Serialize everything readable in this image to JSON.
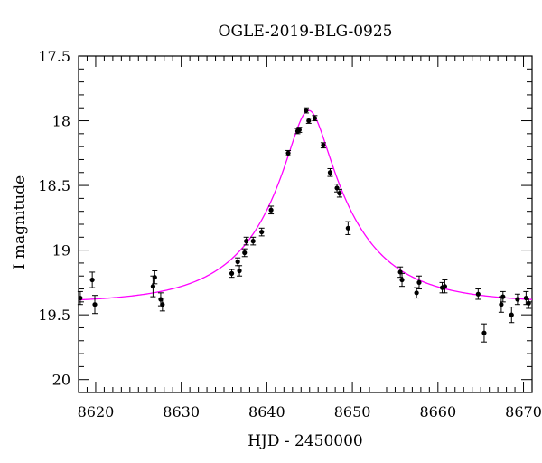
{
  "chart_data": {
    "type": "scatter",
    "title": "OGLE-2019-BLG-0925",
    "xlabel": "HJD - 2450000",
    "ylabel": "I magnitude",
    "xlim": [
      8618,
      8671
    ],
    "ylim": [
      17.5,
      20.1
    ],
    "y_inverted": true,
    "x_ticks": [
      8620,
      8630,
      8640,
      8650,
      8660,
      8670
    ],
    "y_ticks": [
      "17.5",
      "18",
      "18.5",
      "19",
      "19.5",
      "20"
    ],
    "model_color": "#ff00ff",
    "model": {
      "name": "",
      "t0": 8644.9,
      "peak_mag": 17.92,
      "baseline_mag": 19.41,
      "u0": 0.214,
      "tE": 10.4,
      "x_range": [
        8618,
        8671
      ]
    },
    "series": [
      {
        "name": "",
        "points": [
          {
            "x": 8618.2,
            "y": 19.37,
            "err": 0.05
          },
          {
            "x": 8619.6,
            "y": 19.23,
            "err": 0.06
          },
          {
            "x": 8619.9,
            "y": 19.42,
            "err": 0.07
          },
          {
            "x": 8626.7,
            "y": 19.28,
            "err": 0.08
          },
          {
            "x": 8626.9,
            "y": 19.21,
            "err": 0.05
          },
          {
            "x": 8627.6,
            "y": 19.38,
            "err": 0.05
          },
          {
            "x": 8627.8,
            "y": 19.42,
            "err": 0.05
          },
          {
            "x": 8635.9,
            "y": 19.18,
            "err": 0.03
          },
          {
            "x": 8636.6,
            "y": 19.09,
            "err": 0.03
          },
          {
            "x": 8636.8,
            "y": 19.16,
            "err": 0.04
          },
          {
            "x": 8637.4,
            "y": 19.02,
            "err": 0.03
          },
          {
            "x": 8637.6,
            "y": 18.93,
            "err": 0.03
          },
          {
            "x": 8638.4,
            "y": 18.93,
            "err": 0.03
          },
          {
            "x": 8639.4,
            "y": 18.86,
            "err": 0.03
          },
          {
            "x": 8640.5,
            "y": 18.69,
            "err": 0.03
          },
          {
            "x": 8642.5,
            "y": 18.25,
            "err": 0.02
          },
          {
            "x": 8643.6,
            "y": 18.08,
            "err": 0.02
          },
          {
            "x": 8643.8,
            "y": 18.07,
            "err": 0.02
          },
          {
            "x": 8644.6,
            "y": 17.92,
            "err": 0.02
          },
          {
            "x": 8644.9,
            "y": 18.0,
            "err": 0.02
          },
          {
            "x": 8645.6,
            "y": 17.98,
            "err": 0.02
          },
          {
            "x": 8646.6,
            "y": 18.19,
            "err": 0.02
          },
          {
            "x": 8647.4,
            "y": 18.4,
            "err": 0.03
          },
          {
            "x": 8648.2,
            "y": 18.52,
            "err": 0.03
          },
          {
            "x": 8648.5,
            "y": 18.56,
            "err": 0.03
          },
          {
            "x": 8649.5,
            "y": 18.83,
            "err": 0.05
          },
          {
            "x": 8655.6,
            "y": 19.17,
            "err": 0.04
          },
          {
            "x": 8655.8,
            "y": 19.23,
            "err": 0.05
          },
          {
            "x": 8657.5,
            "y": 19.33,
            "err": 0.04
          },
          {
            "x": 8657.8,
            "y": 19.25,
            "err": 0.05
          },
          {
            "x": 8660.5,
            "y": 19.29,
            "err": 0.04
          },
          {
            "x": 8660.8,
            "y": 19.28,
            "err": 0.05
          },
          {
            "x": 8664.7,
            "y": 19.34,
            "err": 0.04
          },
          {
            "x": 8665.4,
            "y": 19.64,
            "err": 0.07
          },
          {
            "x": 8667.4,
            "y": 19.42,
            "err": 0.06
          },
          {
            "x": 8667.6,
            "y": 19.36,
            "err": 0.04
          },
          {
            "x": 8668.6,
            "y": 19.5,
            "err": 0.06
          },
          {
            "x": 8669.3,
            "y": 19.38,
            "err": 0.04
          },
          {
            "x": 8670.3,
            "y": 19.37,
            "err": 0.05
          },
          {
            "x": 8670.6,
            "y": 19.41,
            "err": 0.04
          }
        ]
      }
    ]
  }
}
